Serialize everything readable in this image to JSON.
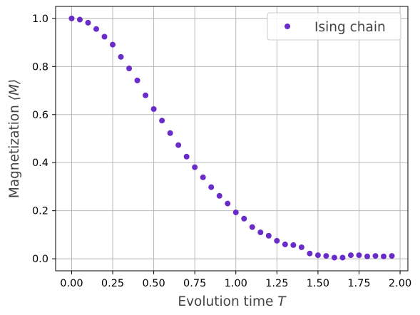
{
  "chart_data": {
    "type": "scatter",
    "xlabel": "Evolution time",
    "xlabel_var": "T",
    "ylabel": "Magnetization",
    "ylabel_var": "⟨M⟩",
    "xlim": [
      -0.0975,
      2.0475
    ],
    "ylim": [
      -0.05,
      1.05
    ],
    "xticks": [
      0.0,
      0.25,
      0.5,
      0.75,
      1.0,
      1.25,
      1.5,
      1.75,
      2.0
    ],
    "xtick_labels": [
      "0.00",
      "0.25",
      "0.50",
      "0.75",
      "1.00",
      "1.25",
      "1.50",
      "1.75",
      "2.00"
    ],
    "yticks": [
      0.0,
      0.2,
      0.4,
      0.6,
      0.8,
      1.0
    ],
    "ytick_labels": [
      "0.0",
      "0.2",
      "0.4",
      "0.6",
      "0.8",
      "1.0"
    ],
    "grid": true,
    "legend_position": "upper right",
    "series": [
      {
        "name": "Ising chain",
        "color": "#6a2cc8",
        "marker": "circle",
        "x": [
          0.0,
          0.05,
          0.1,
          0.15,
          0.2,
          0.25,
          0.3,
          0.35,
          0.4,
          0.45,
          0.5,
          0.55,
          0.6,
          0.65,
          0.7,
          0.75,
          0.8,
          0.85,
          0.9,
          0.95,
          1.0,
          1.05,
          1.1,
          1.15,
          1.2,
          1.25,
          1.3,
          1.35,
          1.4,
          1.45,
          1.5,
          1.55,
          1.6,
          1.65,
          1.7,
          1.75,
          1.8,
          1.85,
          1.9,
          1.95
        ],
        "y": [
          1.0,
          0.995,
          0.982,
          0.956,
          0.924,
          0.891,
          0.84,
          0.792,
          0.742,
          0.68,
          0.623,
          0.575,
          0.523,
          0.473,
          0.425,
          0.381,
          0.339,
          0.298,
          0.262,
          0.23,
          0.193,
          0.167,
          0.132,
          0.11,
          0.096,
          0.075,
          0.06,
          0.057,
          0.048,
          0.022,
          0.015,
          0.012,
          0.005,
          0.005,
          0.015,
          0.015,
          0.01,
          0.012,
          0.01,
          0.012
        ]
      }
    ]
  }
}
